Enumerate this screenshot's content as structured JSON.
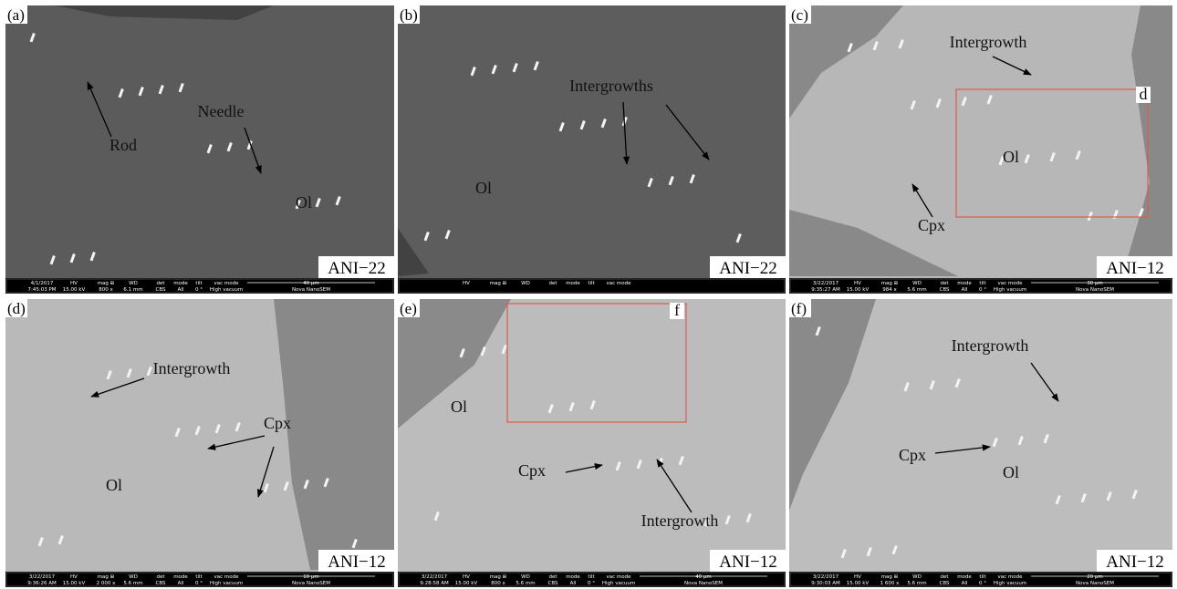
{
  "info_headers": [
    "HV",
    "mag ⊞",
    "WD",
    "det",
    "mode",
    "tilt",
    "vac mode"
  ],
  "panels": [
    {
      "label": "(a)",
      "sample": "ANI−22",
      "annotations": [
        "Rod",
        "Needle",
        "Ol"
      ],
      "info": {
        "date": "4/1/2017",
        "time": "7:45:03 PM",
        "values": [
          "15.00 kV",
          "800 x",
          "6.1 mm",
          "CBS",
          "All",
          "0 °",
          "High vacuum"
        ],
        "scale": "40 μm",
        "instrument": "Nova NanoSEM"
      }
    },
    {
      "label": "(b)",
      "sample": "ANI−22",
      "annotations": [
        "Intergrowths",
        "Ol"
      ]
    },
    {
      "label": "(c)",
      "sample": "ANI−12",
      "annotations": [
        "Intergrowth",
        "Ol",
        "Cpx",
        "d"
      ],
      "info": {
        "date": "3/22/2017",
        "time": "9:35:27 AM",
        "values": [
          "15.00 kV",
          "984 x",
          "5.6 mm",
          "CBS",
          "All",
          "0 °",
          "High vacuum"
        ],
        "scale": "30 μm",
        "instrument": "Nova NanoSEM"
      }
    },
    {
      "label": "(d)",
      "sample": "ANI−12",
      "annotations": [
        "Intergrowth",
        "Cpx",
        "Ol"
      ],
      "info": {
        "date": "3/22/2017",
        "time": "9:36:26 AM",
        "values": [
          "15.00 kV",
          "2 000 x",
          "5.6 mm",
          "CBS",
          "All",
          "0 °",
          "High vacuum"
        ],
        "scale": "10 μm",
        "instrument": "Nova NanoSEM"
      }
    },
    {
      "label": "(e)",
      "sample": "ANI−12",
      "annotations": [
        "Ol",
        "f",
        "Cpx",
        "Intergrowth"
      ],
      "info": {
        "date": "3/22/2017",
        "time": "9:28:58 AM",
        "values": [
          "15.00 kV",
          "800 x",
          "5.6 mm",
          "CBS",
          "All",
          "0 °",
          "High vacuum"
        ],
        "scale": "40 μm",
        "instrument": "Nova NanoSEM"
      }
    },
    {
      "label": "(f)",
      "sample": "ANI−12",
      "annotations": [
        "Intergrowth",
        "Cpx",
        "Ol"
      ],
      "info": {
        "date": "3/22/2017",
        "time": "9:30:03 AM",
        "values": [
          "15.00 kV",
          "1 600 x",
          "5.6 mm",
          "CBS",
          "All",
          "0 °",
          "High vacuum"
        ],
        "scale": "20 μm",
        "instrument": "Nova NanoSEM"
      }
    }
  ]
}
